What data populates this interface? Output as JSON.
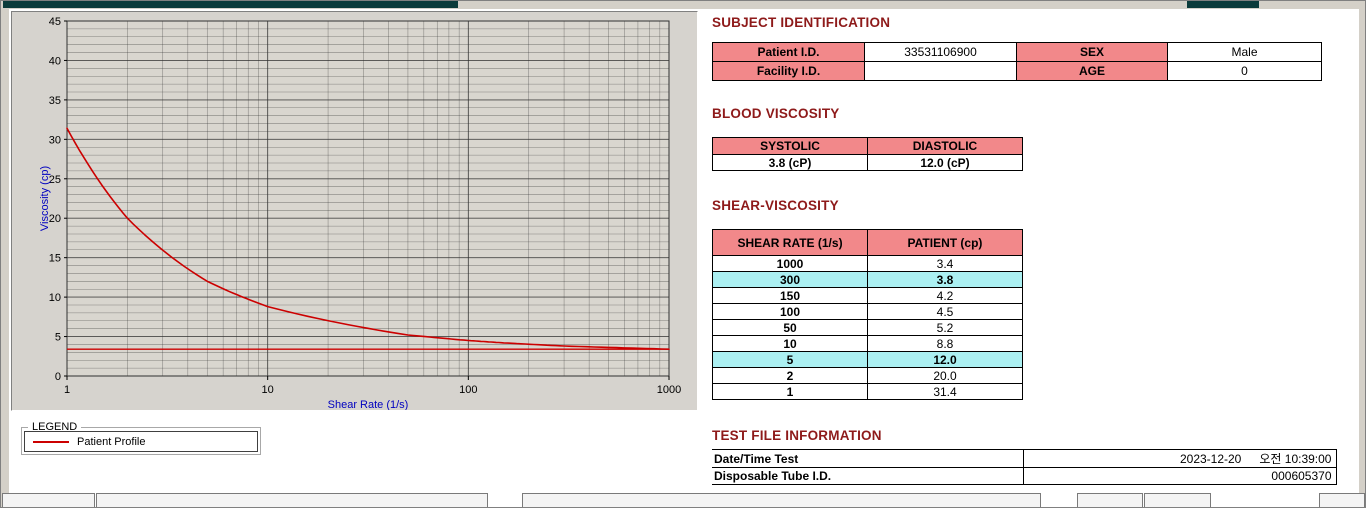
{
  "colors": {
    "section_title_color": "#8E1A1A",
    "table_header_pink": "#F2888A",
    "highlight_cyan": "#ABF0F2",
    "series_red": "#CC0000",
    "axis_label_blue": "#0000C0",
    "top_bar_teal": "#0B3B3B"
  },
  "subject": {
    "title": "SUBJECT IDENTIFICATION",
    "labels": {
      "patient_id": "Patient I.D.",
      "facility_id": "Facility I.D.",
      "sex": "SEX",
      "age": "AGE"
    },
    "values": {
      "patient_id": "33531106900",
      "facility_id": "",
      "sex": "Male",
      "age": "0"
    }
  },
  "blood_viscosity": {
    "title": "BLOOD VISCOSITY",
    "headers": [
      "SYSTOLIC",
      "DIASTOLIC"
    ],
    "values": [
      "3.8 (cP)",
      "12.0 (cP)"
    ]
  },
  "shear_viscosity": {
    "title": "SHEAR-VISCOSITY",
    "headers": [
      "SHEAR RATE (1/s)",
      "PATIENT (cp)"
    ],
    "rows": [
      {
        "rate": "1000",
        "value": "3.4",
        "highlight": false
      },
      {
        "rate": "300",
        "value": "3.8",
        "highlight": true
      },
      {
        "rate": "150",
        "value": "4.2",
        "highlight": false
      },
      {
        "rate": "100",
        "value": "4.5",
        "highlight": false
      },
      {
        "rate": "50",
        "value": "5.2",
        "highlight": false
      },
      {
        "rate": "10",
        "value": "8.8",
        "highlight": false
      },
      {
        "rate": "5",
        "value": "12.0",
        "highlight": true
      },
      {
        "rate": "2",
        "value": "20.0",
        "highlight": false
      },
      {
        "rate": "1",
        "value": "31.4",
        "highlight": false
      }
    ]
  },
  "test_file": {
    "title": "TEST FILE INFORMATION",
    "rows": [
      {
        "label": "Date/Time Test",
        "value_date": "2023-12-20",
        "value_time": "오전 10:39:00"
      },
      {
        "label": "Disposable Tube I.D.",
        "value": "000605370"
      }
    ]
  },
  "legend": {
    "group_label": "LEGEND",
    "entries": [
      {
        "label": "Patient Profile",
        "color": "#CC0000"
      }
    ]
  },
  "chart_data": {
    "type": "line",
    "title": "",
    "xlabel": "Shear Rate (1/s)",
    "ylabel": "Viscosity (cp)",
    "x_scale": "log",
    "xlim": [
      1,
      1000
    ],
    "ylim": [
      0,
      45
    ],
    "y_tick_step": 5,
    "x_ticks": [
      1,
      10,
      100,
      1000
    ],
    "grid": true,
    "legend_position": "below-left",
    "series": [
      {
        "name": "Patient Profile",
        "color": "#CC0000",
        "x": [
          1,
          2,
          5,
          10,
          50,
          100,
          150,
          300,
          1000
        ],
        "y": [
          31.4,
          20.0,
          12.0,
          8.8,
          5.2,
          4.5,
          4.2,
          3.8,
          3.4
        ]
      }
    ],
    "reference_line": {
      "y": 3.4,
      "color": "#CC0000"
    }
  }
}
